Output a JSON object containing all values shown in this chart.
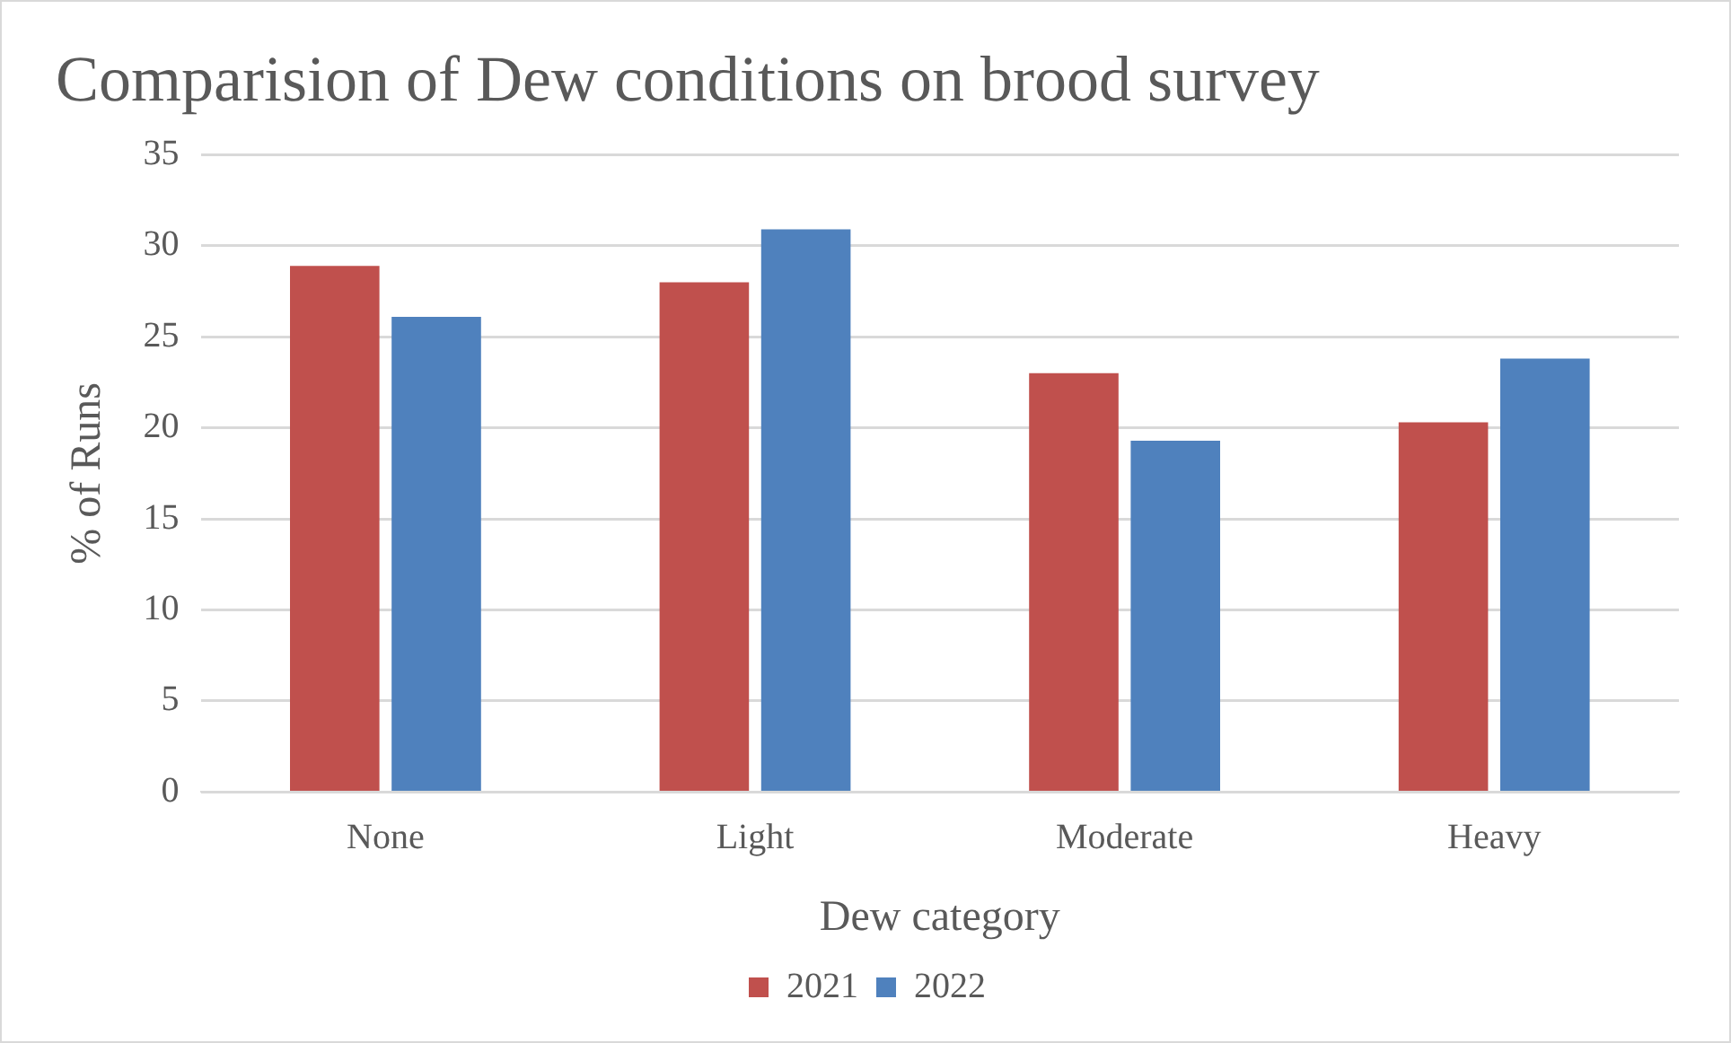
{
  "chart_data": {
    "type": "bar",
    "title": "Comparision of Dew conditions on brood survey",
    "xlabel": "Dew category",
    "ylabel": "% of Runs",
    "categories": [
      "None",
      "Light",
      "Moderate",
      "Heavy"
    ],
    "series": [
      {
        "name": "2021",
        "color": "#c0504d",
        "values": [
          28.9,
          28.0,
          23.0,
          20.3
        ]
      },
      {
        "name": "2022",
        "color": "#4f81bd",
        "values": [
          26.1,
          30.9,
          19.3,
          23.8
        ]
      }
    ],
    "ylim": [
      0,
      35
    ],
    "yticks": [
      0,
      5,
      10,
      15,
      20,
      25,
      30,
      35
    ],
    "grid": "y",
    "legend": "bottom"
  }
}
